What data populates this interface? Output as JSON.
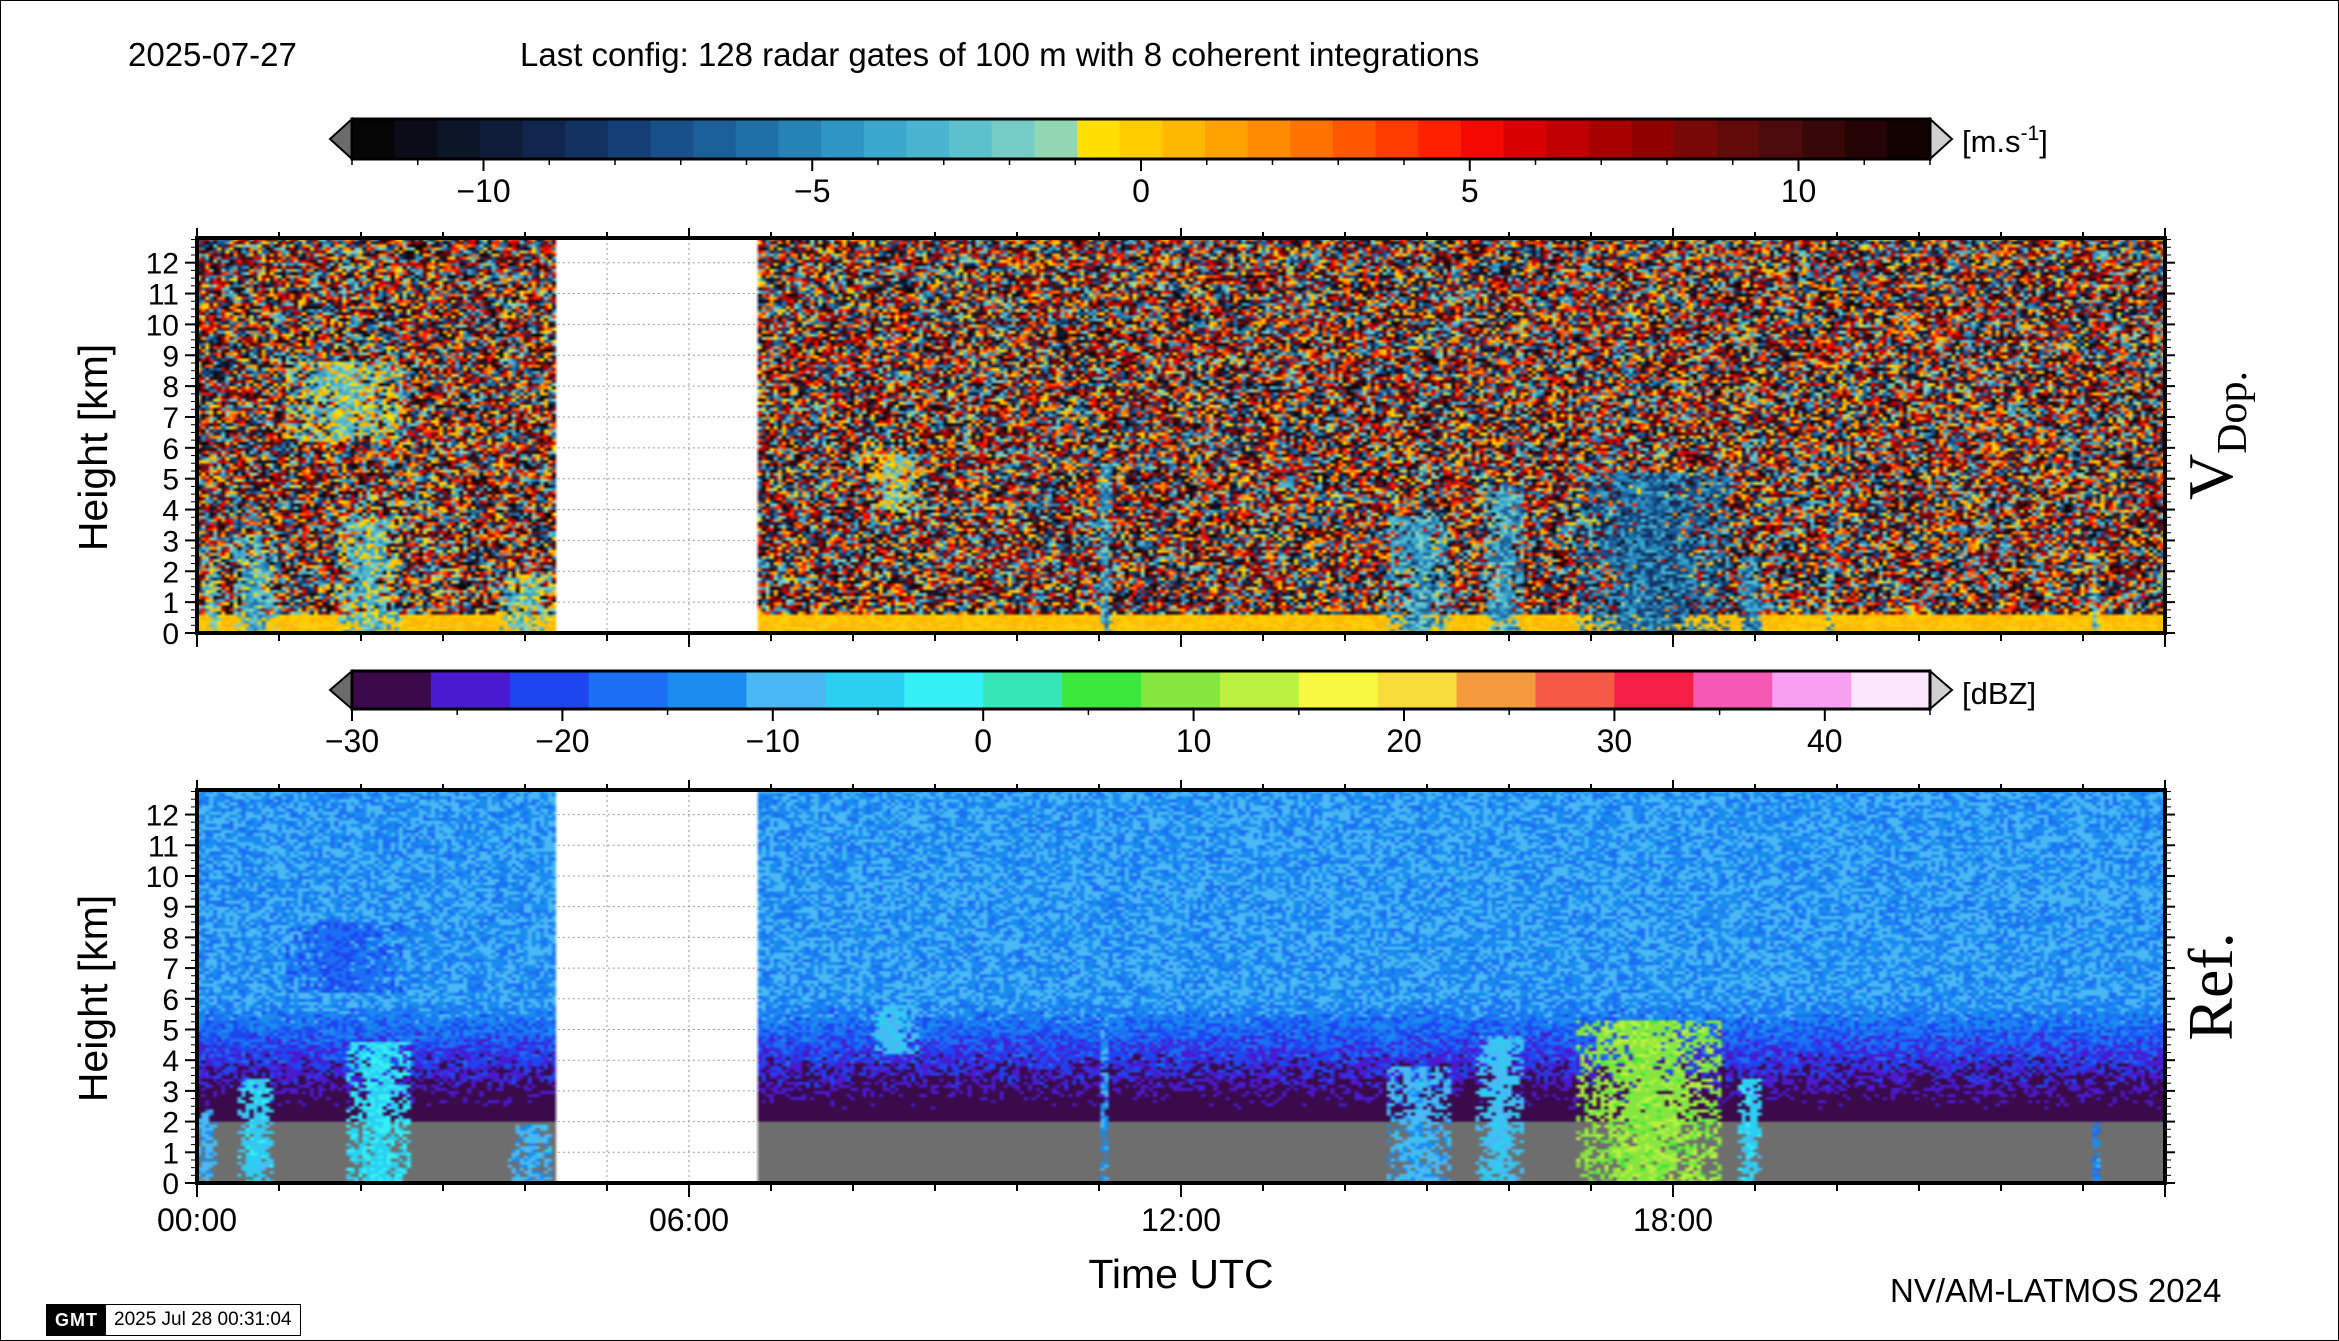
{
  "header": {
    "date": "2025-07-27",
    "config": "Last config: 128 radar gates of 100 m with 8 coherent integrations"
  },
  "footer": {
    "credit": "NV/AM-LATMOS 2024",
    "gmt_logo": "GMT",
    "gmt_timestamp": "2025 Jul 28 00:31:04"
  },
  "colorbars": {
    "velocity": {
      "unit_prefix": "[m.s",
      "unit_exp": "-1",
      "unit_suffix": "]",
      "range": [
        -12,
        12
      ],
      "ticks": [
        -10,
        -5,
        0,
        5,
        10
      ],
      "tick_labels": [
        "−10",
        "−5",
        "0",
        "5",
        "10"
      ],
      "colors": [
        "#050505",
        "#0a0d18",
        "#0c1428",
        "#0e1c3a",
        "#10264e",
        "#123262",
        "#143e76",
        "#17508a",
        "#1b5f99",
        "#1f70a8",
        "#2683b8",
        "#2e96c4",
        "#3aa8cc",
        "#4ab5cf",
        "#5dc1cd",
        "#75cbc6",
        "#92d6b3",
        "#ffe000",
        "#ffcd00",
        "#ffb800",
        "#ffa200",
        "#ff8b00",
        "#ff7200",
        "#ff5800",
        "#ff3c00",
        "#ff2000",
        "#f50800",
        "#d80000",
        "#c00000",
        "#a80000",
        "#900000",
        "#780808",
        "#600a0a",
        "#4c0a0a",
        "#380808",
        "#240404",
        "#140202"
      ]
    },
    "reflectivity": {
      "unit": "[dBZ]",
      "range": [
        -30,
        45
      ],
      "ticks": [
        -30,
        -20,
        -10,
        0,
        10,
        20,
        30,
        40
      ],
      "tick_labels": [
        "−30",
        "−20",
        "−10",
        "0",
        "10",
        "20",
        "30",
        "40"
      ],
      "colors": [
        "#3a0a4a",
        "#4a1ad0",
        "#1e46f0",
        "#1c6ef4",
        "#1a8cf0",
        "#4ab8f4",
        "#2ad0f0",
        "#36f0f8",
        "#36e6b6",
        "#3ce83c",
        "#86e640",
        "#bcf040",
        "#f8f840",
        "#f8dc3c",
        "#f49a3c",
        "#f45a46",
        "#f41e46",
        "#f45ab4",
        "#f8a0f0",
        "#fce6fc"
      ]
    }
  },
  "chart_data": [
    {
      "type": "heatmap",
      "title": "V Dop.",
      "panel_label_main": "V",
      "panel_label_sub": "Dop.",
      "xlabel": "",
      "ylabel": "Height [km]",
      "xlim": [
        0,
        24
      ],
      "ylim": [
        0,
        12.8
      ],
      "yticks": [
        "0",
        "1",
        "2",
        "3",
        "4",
        "5",
        "6",
        "7",
        "8",
        "9",
        "10",
        "11",
        "12"
      ],
      "xticks": [],
      "grid": true,
      "gap_hours": [
        4.4,
        6.85
      ],
      "variable": "Doppler velocity",
      "unit": "m.s-1",
      "background": "random noise of velocities between -12 and 12 m.s-1",
      "surface_layer": {
        "height_km": [
          0,
          0.6
        ],
        "value": 0.3
      },
      "features": [
        {
          "t": [
            0.1,
            0.3
          ],
          "h": [
            0,
            2.2
          ],
          "v": -2
        },
        {
          "t": [
            0.45,
            1.0
          ],
          "h": [
            0,
            3.2
          ],
          "v": -3
        },
        {
          "t": [
            1.7,
            2.5
          ],
          "h": [
            0,
            3.8
          ],
          "v": -2.5
        },
        {
          "t": [
            1.1,
            2.5
          ],
          "h": [
            6.2,
            8.8
          ],
          "v": -1.5
        },
        {
          "t": [
            3.7,
            4.35
          ],
          "h": [
            0,
            1.9
          ],
          "v": -2
        },
        {
          "t": [
            8.2,
            8.8
          ],
          "h": [
            4.0,
            5.8
          ],
          "v": -1.5
        },
        {
          "t": [
            11.0,
            11.15
          ],
          "h": [
            0,
            5.5
          ],
          "v": -4
        },
        {
          "t": [
            14.5,
            15.3
          ],
          "h": [
            0,
            3.8
          ],
          "v": -4
        },
        {
          "t": [
            15.7,
            16.2
          ],
          "h": [
            0,
            4.8
          ],
          "v": -4
        },
        {
          "t": [
            16.8,
            18.7
          ],
          "h": [
            0,
            5.2
          ],
          "v": -6
        },
        {
          "t": [
            18.8,
            19.1
          ],
          "h": [
            0,
            2.5
          ],
          "v": -5
        },
        {
          "t": [
            19.85,
            19.95
          ],
          "h": [
            0,
            2.2
          ],
          "v": -3
        },
        {
          "t": [
            23.1,
            23.2
          ],
          "h": [
            0,
            2.5
          ],
          "v": -3
        }
      ]
    },
    {
      "type": "heatmap",
      "title": "Ref.",
      "panel_label_main": "Ref.",
      "xlabel": "Time UTC",
      "ylabel": "Height [km]",
      "xlim": [
        0,
        24
      ],
      "ylim": [
        0,
        12.8
      ],
      "yticks": [
        "0",
        "1",
        "2",
        "3",
        "4",
        "5",
        "6",
        "7",
        "8",
        "9",
        "10",
        "11",
        "12"
      ],
      "xtick_hours": [
        0,
        6,
        12,
        18
      ],
      "xticks": [
        "00:00",
        "06:00",
        "12:00",
        "18:00"
      ],
      "grid": true,
      "gap_hours": [
        4.4,
        6.85
      ],
      "variable": "Reflectivity",
      "unit": "dBZ",
      "background": "noise-level reflectivity decreasing from -12 dBZ at top to -28 dBZ near 3 km",
      "surface_layer": {
        "height_km": [
          0,
          2.0
        ],
        "color": "#6e6e6e"
      },
      "features": [
        {
          "t": [
            0.0,
            0.25
          ],
          "h": [
            0,
            2.4
          ],
          "v": -10
        },
        {
          "t": [
            0.5,
            0.95
          ],
          "h": [
            0,
            3.4
          ],
          "v": -6
        },
        {
          "t": [
            1.8,
            2.6
          ],
          "h": [
            0,
            4.6
          ],
          "v": -4
        },
        {
          "t": [
            1.1,
            2.5
          ],
          "h": [
            6.2,
            8.5
          ],
          "v": -18
        },
        {
          "t": [
            3.8,
            4.35
          ],
          "h": [
            0,
            1.9
          ],
          "v": -10
        },
        {
          "t": [
            8.2,
            8.8
          ],
          "h": [
            4.2,
            5.8
          ],
          "v": -8
        },
        {
          "t": [
            11.0,
            11.12
          ],
          "h": [
            0,
            5.6
          ],
          "v": -12
        },
        {
          "t": [
            14.5,
            15.3
          ],
          "h": [
            0,
            3.8
          ],
          "v": -10
        },
        {
          "t": [
            15.6,
            16.2
          ],
          "h": [
            0,
            4.8
          ],
          "v": -8
        },
        {
          "t": [
            16.8,
            18.6
          ],
          "h": [
            0,
            5.3
          ],
          "v": 10
        },
        {
          "t": [
            18.8,
            19.1
          ],
          "h": [
            0,
            3.4
          ],
          "v": -6
        },
        {
          "t": [
            23.1,
            23.2
          ],
          "h": [
            0,
            2.0
          ],
          "v": -14
        }
      ]
    }
  ]
}
